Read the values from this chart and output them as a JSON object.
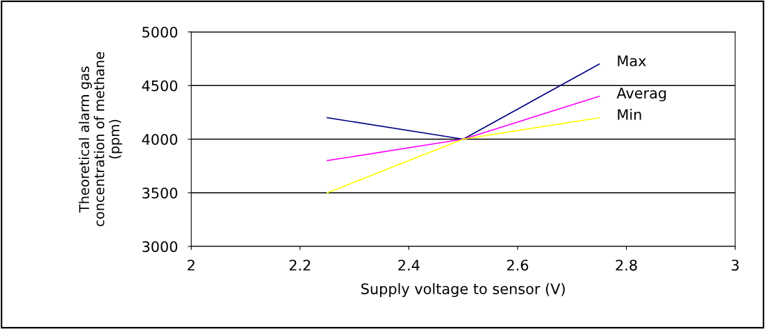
{
  "chart_data": {
    "type": "line",
    "xlabel": "Supply voltage to sensor (V)",
    "ylabel": "Theoretical alarm gas\nconcentration of methane\n(ppm)",
    "x": [
      2.25,
      2.5,
      2.75
    ],
    "series": [
      {
        "name": "Max",
        "color": "#000080",
        "values": [
          4200,
          4000,
          4700
        ]
      },
      {
        "name": "Averag",
        "color": "#ff00ff",
        "values": [
          3800,
          4000,
          4400
        ]
      },
      {
        "name": "Min",
        "color": "#ffff00",
        "values": [
          3500,
          4000,
          4200
        ]
      }
    ],
    "xlim": [
      2,
      3
    ],
    "xticks": [
      2,
      2.2,
      2.4,
      2.6,
      2.8,
      3
    ],
    "ylim": [
      3000,
      5000
    ],
    "yticks": [
      3000,
      3500,
      4000,
      4500,
      5000
    ],
    "grid": "y",
    "marker": "none",
    "line_style": "solid"
  }
}
